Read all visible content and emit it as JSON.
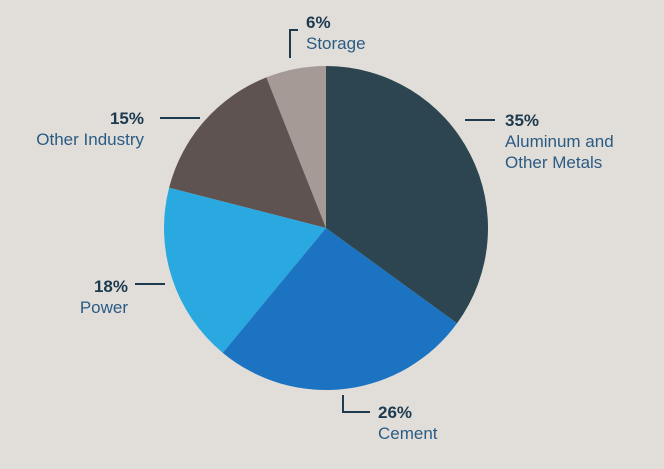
{
  "chart_data": {
    "type": "pie",
    "categories": [
      "Aluminum and Other Metals",
      "Cement",
      "Power",
      "Other Industry",
      "Storage"
    ],
    "values": [
      35,
      26,
      18,
      15,
      6
    ],
    "value_labels": [
      "35%",
      "26%",
      "18%",
      "15%",
      "6%"
    ],
    "colors": [
      "#2c4550",
      "#1c73c1",
      "#2aa9e1",
      "#5e5350",
      "#a59a95"
    ]
  }
}
